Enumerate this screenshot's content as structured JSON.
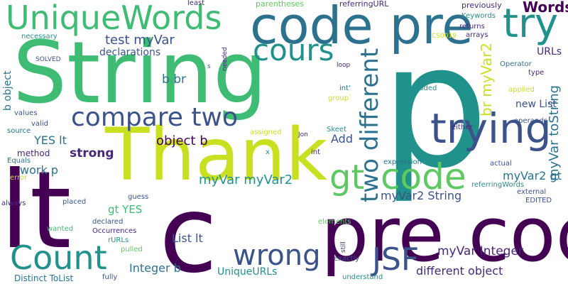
{
  "words": [
    {
      "text": "p",
      "color": "#21918c",
      "rotated": false
    },
    {
      "text": "String",
      "color": "#3fbc73",
      "rotated": false
    },
    {
      "text": "Thank",
      "color": "#c8e020",
      "rotated": false
    },
    {
      "text": "lt",
      "color": "#440154",
      "rotated": false
    },
    {
      "text": "c",
      "color": "#440154",
      "rotated": false
    },
    {
      "text": "pre code",
      "color": "#440154",
      "rotated": false
    },
    {
      "text": "code pre",
      "color": "#2c728e",
      "rotated": false
    },
    {
      "text": "UniqueWords",
      "color": "#3fbc73",
      "rotated": false
    },
    {
      "text": "cours",
      "color": "#21918c",
      "rotated": false
    },
    {
      "text": "try",
      "color": "#21918c",
      "rotated": false
    },
    {
      "text": "trying",
      "color": "#3b528b",
      "rotated": false
    },
    {
      "text": "code",
      "color": "#5ec962",
      "rotated": false
    },
    {
      "text": "gt",
      "color": "#5ec962",
      "rotated": false
    },
    {
      "text": "compare two",
      "color": "#3b528b",
      "rotated": false
    },
    {
      "text": "Count",
      "color": "#21918c",
      "rotated": false
    },
    {
      "text": "wrong",
      "color": "#3b528b",
      "rotated": false
    },
    {
      "text": "JSF",
      "color": "#3b528b",
      "rotated": false
    },
    {
      "text": "two different",
      "color": "#2c728e",
      "rotated": true
    },
    {
      "text": "Words",
      "color": "#440154",
      "rotated": false
    },
    {
      "text": "test myVar",
      "color": "#3b528b",
      "rotated": false
    },
    {
      "text": "declarations",
      "color": "#3b528b",
      "rotated": false
    },
    {
      "text": "b br",
      "color": "#2c728e",
      "rotated": false
    },
    {
      "text": "object b",
      "color": "#440154",
      "rotated": false
    },
    {
      "text": "YES lt",
      "color": "#2c728e",
      "rotated": false
    },
    {
      "text": "strong",
      "color": "#482878",
      "rotated": false
    },
    {
      "text": "Add",
      "color": "#3b528b",
      "rotated": false
    },
    {
      "text": "work p",
      "color": "#2c728e",
      "rotated": false
    },
    {
      "text": "myVar2 gt",
      "color": "#2c728e",
      "rotated": false
    },
    {
      "text": "br myVar2",
      "color": "#c8e020",
      "rotated": true
    },
    {
      "text": "myVar toString",
      "color": "#2c728e",
      "rotated": true
    },
    {
      "text": "URLs",
      "color": "#482878",
      "rotated": false
    },
    {
      "text": "new List",
      "color": "#3b528b",
      "rotated": false
    },
    {
      "text": "myVar myVar2",
      "color": "#21918c",
      "rotated": false
    },
    {
      "text": "gt YES",
      "color": "#3fbc73",
      "rotated": false
    },
    {
      "text": "myVar2 String",
      "color": "#3b528b",
      "rotated": false
    },
    {
      "text": "List lt",
      "color": "#3b528b",
      "rotated": false
    },
    {
      "text": "myVar Integer",
      "color": "#482878",
      "rotated": false
    },
    {
      "text": "Integer b",
      "color": "#2c728e",
      "rotated": false
    },
    {
      "text": "UniqueURLs",
      "color": "#21918c",
      "rotated": false
    },
    {
      "text": "different object",
      "color": "#482878",
      "rotated": false
    },
    {
      "text": "Distinct ToList",
      "color": "#2c728e",
      "rotated": false
    },
    {
      "text": "b object",
      "color": "#2c728e",
      "rotated": true
    },
    {
      "text": "method",
      "color": "#482878",
      "rotated": false
    },
    {
      "text": "least",
      "color": "#482878",
      "rotated": false
    },
    {
      "text": "parentheses",
      "color": "#5ec962",
      "rotated": false
    },
    {
      "text": "referringURL",
      "color": "#482878",
      "rotated": false
    },
    {
      "text": "previously",
      "color": "#482878",
      "rotated": false
    },
    {
      "text": "Keywords",
      "color": "#21918c",
      "rotated": false
    },
    {
      "text": "returns",
      "color": "#482878",
      "rotated": false
    },
    {
      "text": "arrays",
      "color": "#482878",
      "rotated": false
    },
    {
      "text": "CS0019",
      "color": "#c8e020",
      "rotated": false
    },
    {
      "text": "necessary",
      "color": "#21918c",
      "rotated": false
    },
    {
      "text": "SOLVED",
      "color": "#3b528b",
      "rotated": false
    },
    {
      "text": "needed",
      "color": "#482878",
      "rotated": true
    },
    {
      "text": "s",
      "color": "#2c728e",
      "rotated": false
    },
    {
      "text": "loop",
      "color": "#482878",
      "rotated": false
    },
    {
      "text": "Operator",
      "color": "#2c728e",
      "rotated": false
    },
    {
      "text": "type",
      "color": "#482878",
      "rotated": false
    },
    {
      "text": "added",
      "color": "#21918c",
      "rotated": false
    },
    {
      "text": "applied",
      "color": "#c8e020",
      "rotated": false
    },
    {
      "text": "int'",
      "color": "#2c728e",
      "rotated": false
    },
    {
      "text": "group`",
      "color": "#c8e020",
      "rotated": false
    },
    {
      "text": "values",
      "color": "#3b528b",
      "rotated": false
    },
    {
      "text": "valid",
      "color": "#3b528b",
      "rotated": false
    },
    {
      "text": "source",
      "color": "#2c728e",
      "rotated": false
    },
    {
      "text": "Equals",
      "color": "#2c728e",
      "rotated": false
    },
    {
      "text": "error",
      "color": "#c8e020",
      "rotated": false
    },
    {
      "text": "assigned",
      "color": "#c8e020",
      "rotated": false
    },
    {
      "text": "Jon",
      "color": "#482878",
      "rotated": false
    },
    {
      "text": "Skeet",
      "color": "#21918c",
      "rotated": false
    },
    {
      "text": "either",
      "color": "#482878",
      "rotated": false
    },
    {
      "text": "operands",
      "color": "#3b528b",
      "rotated": false
    },
    {
      "text": "x",
      "color": "#21918c",
      "rotated": false
    },
    {
      "text": "int",
      "color": "#482878",
      "rotated": false
    },
    {
      "text": "expression",
      "color": "#2c728e",
      "rotated": false
    },
    {
      "text": "actual",
      "color": "#3b528b",
      "rotated": false
    },
    {
      "text": "referringWords",
      "color": "#21918c",
      "rotated": false
    },
    {
      "text": "external",
      "color": "#3b528b",
      "rotated": false
    },
    {
      "text": "EDITED",
      "color": "#3b528b",
      "rotated": false
    },
    {
      "text": "always",
      "color": "#482878",
      "rotated": false
    },
    {
      "text": "placed",
      "color": "#3b528b",
      "rotated": false
    },
    {
      "text": "guess",
      "color": "#3b528b",
      "rotated": false
    },
    {
      "text": "wanted",
      "color": "#3fbc73",
      "rotated": false
    },
    {
      "text": "declared",
      "color": "#3b528b",
      "rotated": false
    },
    {
      "text": "Occurrences",
      "color": "#482878",
      "rotated": false
    },
    {
      "text": "rURLs",
      "color": "#21918c",
      "rotated": false
    },
    {
      "text": "pulled",
      "color": "#5ec962",
      "rotated": false
    },
    {
      "text": "elements",
      "color": "#5ec962",
      "rotated": false
    },
    {
      "text": "still",
      "color": "#482878",
      "rotated": true
    },
    {
      "text": "exactly",
      "color": "#3b528b",
      "rotated": false
    },
    {
      "text": "understand",
      "color": "#21918c",
      "rotated": false
    },
    {
      "text": "fully",
      "color": "#3b528b",
      "rotated": false
    }
  ]
}
